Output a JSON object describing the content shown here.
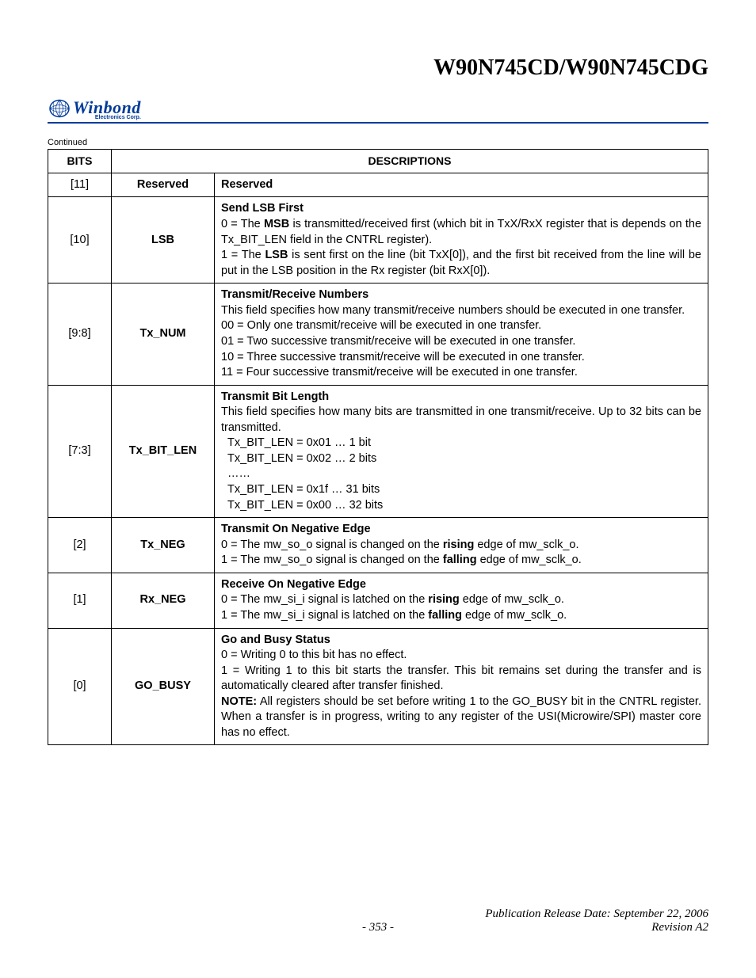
{
  "header": {
    "title": "W90N745CD/W90N745CDG",
    "logo_main": "Winbond",
    "logo_sub": "Electronics Corp.",
    "logo_color": "#003a9a"
  },
  "continued_label": "Continued",
  "table": {
    "header_bits": "BITS",
    "header_desc": "DESCRIPTIONS",
    "rows": [
      {
        "bits": "[11]",
        "name": "Reserved",
        "desc_title": "Reserved",
        "desc_body_html": ""
      },
      {
        "bits": "[10]",
        "name": "LSB",
        "desc_title": "Send LSB First",
        "desc_body_html": "0 = The <span class=\"b\">MSB</span> is transmitted/received first (which bit in TxX/RxX register that is depends on the Tx_BIT_LEN field in the CNTRL register).<br>1 = The <span class=\"b\">LSB</span> is sent first on the line (bit TxX[0]), and the first bit received from the line will be put in the LSB position in the Rx register (bit RxX[0])."
      },
      {
        "bits": "[9:8]",
        "name": "Tx_NUM",
        "desc_title": "Transmit/Receive Numbers",
        "desc_body_html": "This field specifies how many transmit/receive numbers should be executed in one transfer.<br>00 = Only one transmit/receive will be executed in one transfer.<br>01 = Two successive transmit/receive will be executed in one transfer.<br>10 = Three successive transmit/receive will be executed in one transfer.<br>11 = Four successive transmit/receive will be executed in one transfer."
      },
      {
        "bits": "[7:3]",
        "name": "Tx_BIT_LEN",
        "desc_title": "Transmit Bit Length",
        "desc_body_html": "This field specifies how many bits are transmitted in one transmit/receive. Up to 32 bits can be transmitted.<br>&nbsp;&nbsp;Tx_BIT_LEN = 0x01 … 1 bit<br>&nbsp;&nbsp;Tx_BIT_LEN = 0x02 … 2 bits<br>&nbsp;&nbsp;……<br>&nbsp;&nbsp;Tx_BIT_LEN = 0x1f … 31 bits<br>&nbsp;&nbsp;Tx_BIT_LEN = 0x00 … 32 bits"
      },
      {
        "bits": "[2]",
        "name": "Tx_NEG",
        "desc_title": "Transmit On Negative Edge",
        "desc_body_html": "0 = The mw_so_o signal is changed on the <span class=\"b\">rising</span> edge of mw_sclk_o.<br>1 = The mw_so_o signal is changed on the <span class=\"b\">falling</span> edge of mw_sclk_o."
      },
      {
        "bits": "[1]",
        "name": "Rx_NEG",
        "desc_title": "Receive On Negative Edge",
        "desc_body_html": "0 = The mw_si_i signal is latched on the <span class=\"b\">rising</span> edge of mw_sclk_o.<br>1 = The mw_si_i signal is latched on the <span class=\"b\">falling</span> edge of mw_sclk_o."
      },
      {
        "bits": "[0]",
        "name": "GO_BUSY",
        "desc_title": "Go and Busy Status",
        "desc_body_html": "0 = Writing 0 to this bit has no effect.<br>1 = Writing 1 to this bit starts the transfer. This bit remains set during the transfer and is automatically cleared after transfer finished.<br><span class=\"b\">NOTE:</span> All registers should be set before writing 1 to the GO_BUSY bit in the CNTRL register. When a transfer is in progress, writing to any register of the USI(Microwire/SPI) master core has no effect."
      }
    ]
  },
  "footer": {
    "pub_date": "Publication Release Date: September 22, 2006",
    "page_number": "- 353 -",
    "revision": "Revision A2"
  }
}
